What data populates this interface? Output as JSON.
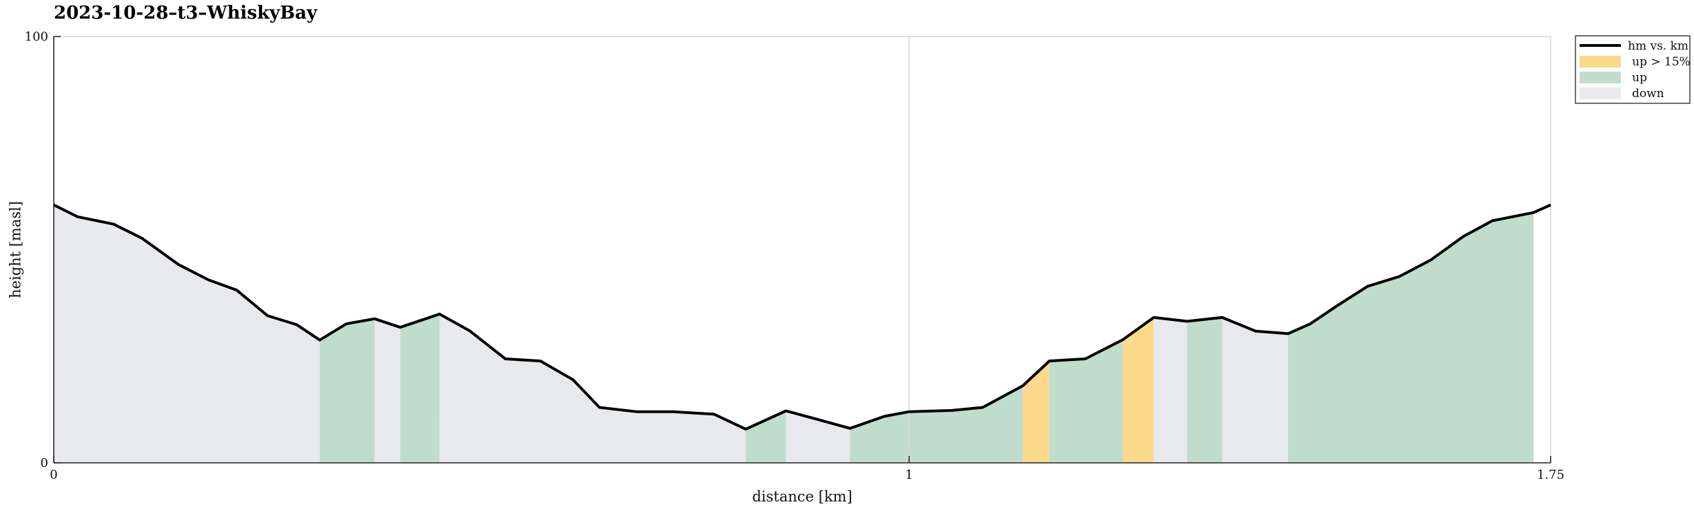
{
  "colors": {
    "down": "#e8e9ec",
    "up": "#c0dccc",
    "steep": "#fdd98c",
    "line": "#000000",
    "grid": "#d8d8d8",
    "frame": "#cfcfcf"
  },
  "chart_data": {
    "type": "area",
    "title": "2023-10-28–t3–WhiskyBay",
    "xlabel": "distance [km]",
    "ylabel": "height [masl]",
    "xlim": [
      0,
      1.75
    ],
    "ylim": [
      0,
      100
    ],
    "x_ticks": [
      "0",
      "1",
      "1.75"
    ],
    "y_ticks": [
      "0",
      "100"
    ],
    "grid": "vertical line at x = 1",
    "legend_position": "outside top-right",
    "legend": [
      {
        "key": "line",
        "label": "hm vs. km"
      },
      {
        "key": "steep",
        "label": "up > 15%"
      },
      {
        "key": "up",
        "label": "up"
      },
      {
        "key": "down",
        "label": "down"
      }
    ],
    "series": [
      {
        "name": "hm vs. km",
        "x": [
          0,
          0.028,
          0.07,
          0.103,
          0.146,
          0.181,
          0.214,
          0.25,
          0.284,
          0.311,
          0.342,
          0.375,
          0.405,
          0.451,
          0.486,
          0.528,
          0.569,
          0.607,
          0.638,
          0.681,
          0.724,
          0.772,
          0.809,
          0.856,
          0.893,
          0.931,
          0.971,
          1.0,
          1.05,
          1.086,
          1.133,
          1.164,
          1.206,
          1.25,
          1.286,
          1.325,
          1.366,
          1.405,
          1.443,
          1.469,
          1.5,
          1.536,
          1.573,
          1.61,
          1.648,
          1.682,
          1.73,
          1.75
        ],
        "y": [
          60.5,
          57.7,
          56.0,
          52.7,
          46.5,
          42.9,
          40.5,
          34.5,
          32.4,
          28.8,
          32.6,
          33.8,
          31.8,
          34.9,
          31.0,
          24.4,
          23.9,
          19.5,
          13.0,
          12.0,
          12.0,
          11.4,
          7.9,
          12.2,
          10.2,
          8.1,
          10.9,
          12.0,
          12.3,
          13.0,
          18.1,
          23.9,
          24.4,
          28.9,
          34.1,
          33.2,
          34.1,
          30.9,
          30.3,
          32.6,
          36.8,
          41.4,
          43.7,
          47.6,
          53.1,
          56.8,
          58.7,
          60.5
        ]
      }
    ],
    "segments": [
      {
        "from": 0,
        "to": 0.311,
        "type": "down"
      },
      {
        "from": 0.311,
        "to": 0.375,
        "type": "up"
      },
      {
        "from": 0.375,
        "to": 0.405,
        "type": "down"
      },
      {
        "from": 0.405,
        "to": 0.451,
        "type": "up"
      },
      {
        "from": 0.451,
        "to": 0.809,
        "type": "down"
      },
      {
        "from": 0.809,
        "to": 0.856,
        "type": "up"
      },
      {
        "from": 0.856,
        "to": 0.931,
        "type": "down"
      },
      {
        "from": 0.931,
        "to": 1.133,
        "type": "up"
      },
      {
        "from": 1.133,
        "to": 1.164,
        "type": "steep"
      },
      {
        "from": 1.164,
        "to": 1.25,
        "type": "up"
      },
      {
        "from": 1.25,
        "to": 1.286,
        "type": "steep"
      },
      {
        "from": 1.286,
        "to": 1.325,
        "type": "down"
      },
      {
        "from": 1.325,
        "to": 1.366,
        "type": "up"
      },
      {
        "from": 1.366,
        "to": 1.443,
        "type": "down"
      },
      {
        "from": 1.443,
        "to": 1.73,
        "type": "up"
      }
    ]
  }
}
